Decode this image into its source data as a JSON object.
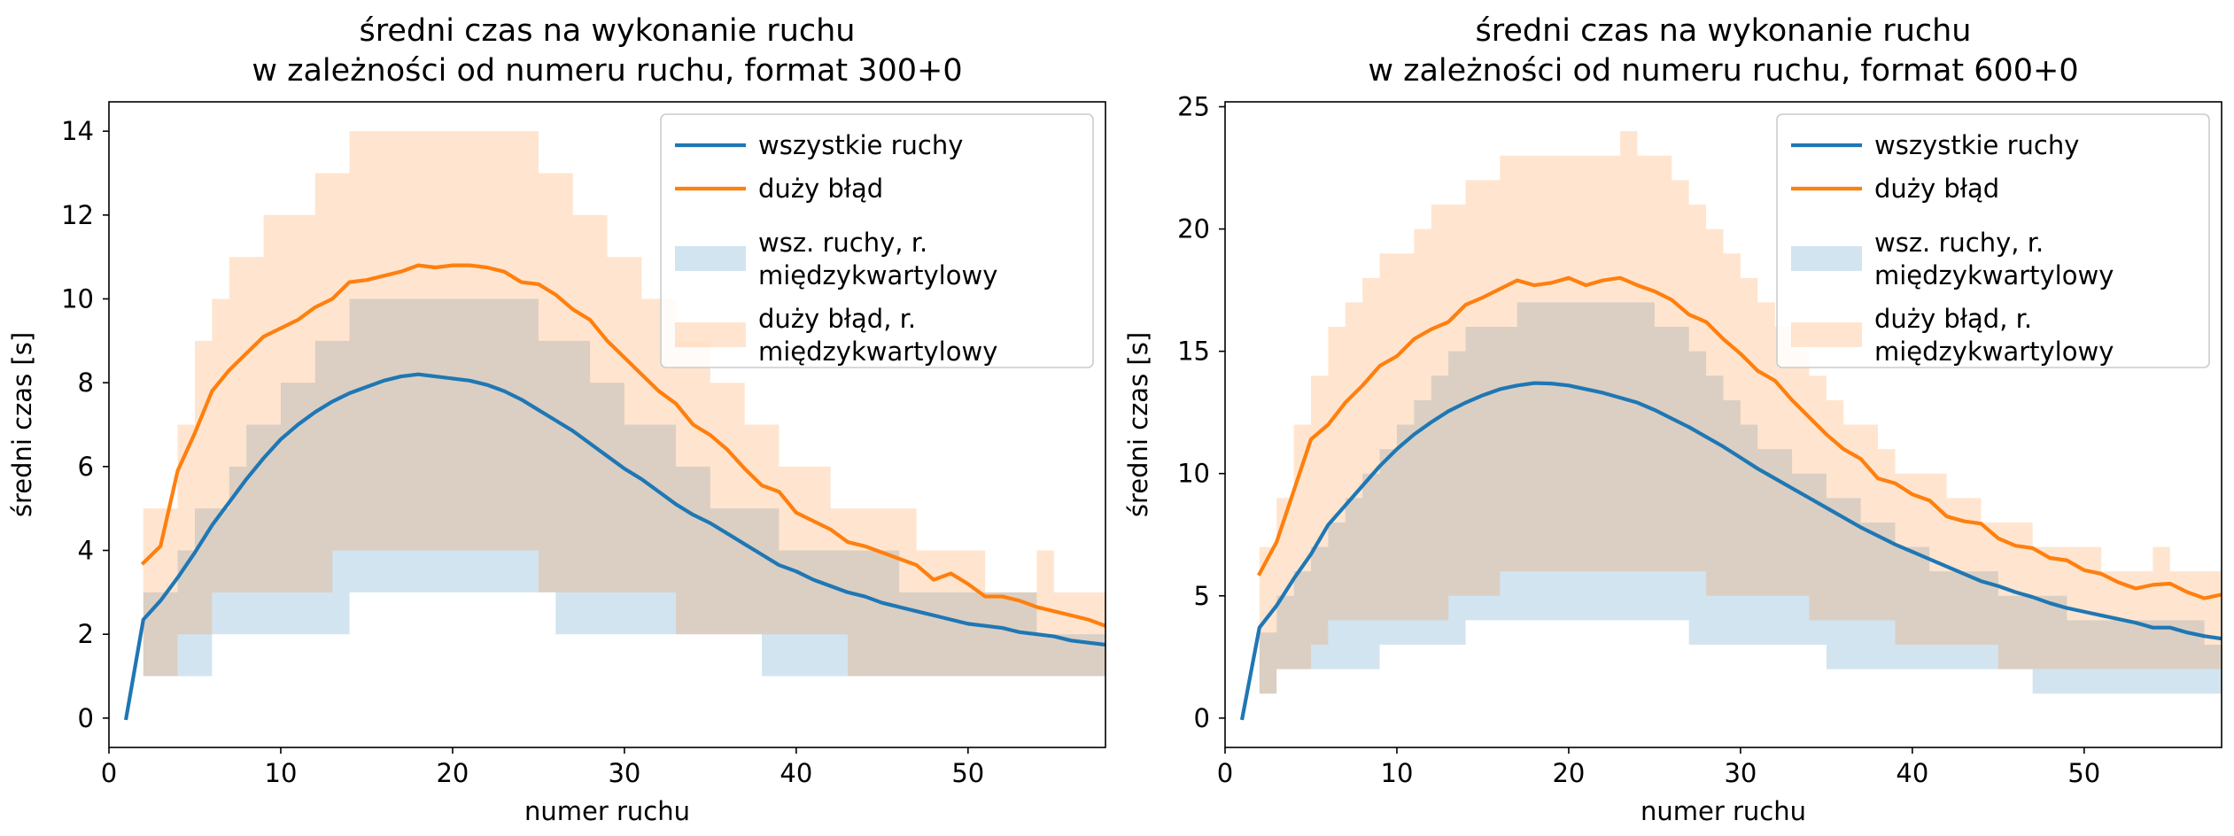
{
  "chart_data": [
    {
      "type": "line",
      "title": [
        "średni czas na wykonanie ruchu",
        "w zależności od numeru ruchu, format 300+0"
      ],
      "xlabel": "numer ruchu",
      "ylabel": "średni czas [s]",
      "xlim": [
        0,
        58
      ],
      "ylim": [
        -0.7,
        14.7
      ],
      "xticks": [
        0,
        10,
        20,
        30,
        40,
        50
      ],
      "yticks": [
        0,
        2,
        4,
        6,
        8,
        10,
        12,
        14
      ],
      "legend": {
        "position": "top-right",
        "entries": [
          {
            "label": "wszystkie ruchy",
            "kind": "line",
            "color": "#1f77b4"
          },
          {
            "label": "duży błąd",
            "kind": "line",
            "color": "#ff7f0e"
          },
          {
            "label": "wsz. ruchy, r. międzykwartylowy",
            "lines": [
              "wsz. ruchy, r.",
              "międzykwartylowy"
            ],
            "kind": "patch",
            "color": "#1f77b4"
          },
          {
            "label": "duży błąd, r. międzykwartylowy",
            "lines": [
              "duży błąd, r.",
              "międzykwartylowy"
            ],
            "kind": "patch",
            "color": "#ff7f0e"
          }
        ]
      },
      "series": [
        {
          "name": "wszystkie ruchy",
          "color": "#1f77b4",
          "x_start": 1,
          "values": [
            0,
            2.35,
            2.8,
            3.35,
            3.95,
            4.6,
            5.15,
            5.7,
            6.2,
            6.65,
            7.0,
            7.3,
            7.55,
            7.75,
            7.9,
            8.05,
            8.15,
            8.2,
            8.15,
            8.1,
            8.05,
            7.95,
            7.8,
            7.6,
            7.35,
            7.1,
            6.85,
            6.55,
            6.25,
            5.95,
            5.7,
            5.4,
            5.1,
            4.85,
            4.65,
            4.4,
            4.15,
            3.9,
            3.65,
            3.5,
            3.3,
            3.15,
            3.0,
            2.9,
            2.75,
            2.65,
            2.55,
            2.45,
            2.35,
            2.25,
            2.2,
            2.15,
            2.05,
            2.0,
            1.95,
            1.85,
            1.8,
            1.75
          ]
        },
        {
          "name": "duży błąd",
          "color": "#ff7f0e",
          "x_start": 2,
          "values": [
            3.7,
            4.1,
            5.9,
            6.8,
            7.8,
            8.3,
            8.7,
            9.1,
            9.3,
            9.5,
            9.8,
            10.0,
            10.4,
            10.45,
            10.55,
            10.65,
            10.8,
            10.75,
            10.8,
            10.8,
            10.75,
            10.65,
            10.4,
            10.35,
            10.1,
            9.75,
            9.5,
            9.0,
            8.6,
            8.2,
            7.8,
            7.5,
            7.0,
            6.75,
            6.4,
            5.95,
            5.55,
            5.4,
            4.9,
            4.7,
            4.5,
            4.2,
            4.1,
            3.95,
            3.8,
            3.65,
            3.3,
            3.45,
            3.2,
            2.9,
            2.9,
            2.8,
            2.65,
            2.55,
            2.45,
            2.35,
            2.2
          ]
        }
      ],
      "bands": [
        {
          "name": "wsz. ruchy, r. międzykwartylowy",
          "color": "#1f77b4",
          "x_start": 2,
          "low": [
            1,
            1,
            1,
            1,
            2,
            2,
            2,
            2,
            2,
            2,
            2,
            2,
            3,
            3,
            3,
            3,
            3,
            3,
            3,
            3,
            3,
            3,
            3,
            3,
            2,
            2,
            2,
            2,
            2,
            2,
            2,
            2,
            2,
            2,
            2,
            2,
            1,
            1,
            1,
            1,
            1,
            1,
            1,
            1,
            1,
            1,
            1,
            1,
            1,
            1,
            1,
            1,
            1,
            1,
            1,
            1,
            1
          ],
          "high": [
            3,
            3,
            4,
            5,
            5,
            6,
            7,
            7,
            8,
            8,
            9,
            9,
            10,
            10,
            10,
            10,
            10,
            10,
            10,
            10,
            10,
            10,
            10,
            9,
            9,
            9,
            8,
            8,
            7,
            7,
            7,
            6,
            6,
            5,
            5,
            5,
            5,
            4,
            4,
            4,
            4,
            4,
            4,
            4,
            3,
            3,
            3,
            3,
            3,
            3,
            3,
            3,
            2,
            2,
            2,
            2,
            2
          ]
        },
        {
          "name": "duży błąd, r. międzykwartylowy",
          "color": "#ff7f0e",
          "x_start": 2,
          "low": [
            1,
            1,
            2,
            2,
            3,
            3,
            3,
            3,
            3,
            3,
            3,
            4,
            4,
            4,
            4,
            4,
            4,
            4,
            4,
            4,
            4,
            4,
            4,
            3,
            3,
            3,
            3,
            3,
            3,
            3,
            3,
            2,
            2,
            2,
            2,
            2,
            2,
            2,
            2,
            2,
            2,
            1,
            1,
            1,
            1,
            1,
            1,
            1,
            1,
            1,
            1,
            1,
            1,
            1,
            1,
            1,
            1
          ],
          "high": [
            5,
            5,
            7,
            9,
            10,
            11,
            11,
            12,
            12,
            12,
            13,
            13,
            14,
            14,
            14,
            14,
            14,
            14,
            14,
            14,
            14,
            14,
            14,
            13,
            13,
            12,
            12,
            11,
            11,
            10,
            10,
            9,
            9,
            8,
            8,
            7,
            7,
            6,
            6,
            6,
            5,
            5,
            5,
            5,
            5,
            4,
            4,
            4,
            4,
            3,
            3,
            3,
            4,
            3,
            3,
            3,
            3
          ]
        }
      ]
    },
    {
      "type": "line",
      "title": [
        "średni czas na wykonanie ruchu",
        "w zależności od numeru ruchu, format 600+0"
      ],
      "xlabel": "numer ruchu",
      "ylabel": "średni czas [s]",
      "xlim": [
        0,
        58
      ],
      "ylim": [
        -1.2,
        25.2
      ],
      "xticks": [
        0,
        10,
        20,
        30,
        40,
        50
      ],
      "yticks": [
        0,
        5,
        10,
        15,
        20,
        25
      ],
      "legend": {
        "position": "top-right",
        "entries": [
          {
            "label": "wszystkie ruchy",
            "kind": "line",
            "color": "#1f77b4"
          },
          {
            "label": "duży błąd",
            "kind": "line",
            "color": "#ff7f0e"
          },
          {
            "label": "wsz. ruchy, r. międzykwartylowy",
            "lines": [
              "wsz. ruchy, r.",
              "międzykwartylowy"
            ],
            "kind": "patch",
            "color": "#1f77b4"
          },
          {
            "label": "duży błąd, r. międzykwartylowy",
            "lines": [
              "duży błąd, r.",
              "międzykwartylowy"
            ],
            "kind": "patch",
            "color": "#ff7f0e"
          }
        ]
      },
      "series": [
        {
          "name": "wszystkie ruchy",
          "color": "#1f77b4",
          "x_start": 1,
          "values": [
            0,
            3.7,
            4.6,
            5.7,
            6.7,
            7.9,
            8.7,
            9.5,
            10.3,
            11.0,
            11.6,
            12.1,
            12.55,
            12.9,
            13.2,
            13.45,
            13.6,
            13.7,
            13.68,
            13.6,
            13.45,
            13.3,
            13.1,
            12.9,
            12.6,
            12.25,
            11.9,
            11.5,
            11.1,
            10.65,
            10.2,
            9.8,
            9.4,
            9.0,
            8.6,
            8.2,
            7.8,
            7.45,
            7.1,
            6.8,
            6.5,
            6.2,
            5.9,
            5.6,
            5.4,
            5.15,
            4.95,
            4.7,
            4.5,
            4.35,
            4.2,
            4.05,
            3.9,
            3.7,
            3.7,
            3.5,
            3.35,
            3.25
          ]
        },
        {
          "name": "duży błąd",
          "color": "#ff7f0e",
          "x_start": 2,
          "values": [
            5.9,
            7.2,
            9.3,
            11.4,
            12.0,
            12.9,
            13.6,
            14.4,
            14.8,
            15.5,
            15.9,
            16.2,
            16.9,
            17.2,
            17.55,
            17.9,
            17.7,
            17.8,
            18.0,
            17.7,
            17.9,
            18.0,
            17.7,
            17.45,
            17.1,
            16.5,
            16.2,
            15.5,
            14.9,
            14.2,
            13.8,
            13.0,
            12.3,
            11.6,
            11.0,
            10.6,
            9.8,
            9.6,
            9.15,
            8.9,
            8.25,
            8.05,
            7.95,
            7.35,
            7.05,
            6.95,
            6.55,
            6.45,
            6.05,
            5.9,
            5.55,
            5.3,
            5.45,
            5.5,
            5.15,
            4.9,
            5.05,
            5.15
          ]
        }
      ],
      "bands": [
        {
          "name": "wsz. ruchy, r. międzykwartylowy",
          "color": "#1f77b4",
          "x_start": 1,
          "low": [
            0,
            1,
            2,
            2,
            2,
            2,
            2,
            2,
            3,
            3,
            3,
            3,
            3,
            4,
            4,
            4,
            4,
            4,
            4,
            4,
            4,
            4,
            4,
            4,
            4,
            4,
            3,
            3,
            3,
            3,
            3,
            3,
            3,
            3,
            2,
            2,
            2,
            2,
            2,
            2,
            2,
            2,
            2,
            2,
            2,
            2,
            1,
            1,
            1,
            1,
            1,
            1,
            1,
            1,
            1,
            1,
            1,
            1
          ],
          "high": [
            0,
            3.5,
            5,
            6,
            7,
            8,
            9,
            10,
            11,
            12,
            13,
            14,
            15,
            16,
            16,
            16,
            17,
            17,
            17,
            17,
            17,
            17,
            17,
            17,
            16,
            16,
            15,
            14,
            13,
            12,
            11,
            11,
            10,
            10,
            9,
            9,
            8,
            8,
            7,
            7,
            6,
            6,
            6,
            6,
            5,
            5,
            5,
            5,
            4,
            4,
            4,
            4,
            4,
            4,
            4,
            4,
            3,
            3
          ]
        },
        {
          "name": "duży błąd, r. międzykwartylowy",
          "color": "#ff7f0e",
          "x_start": 2,
          "low": [
            1,
            2,
            2,
            3,
            4,
            4,
            4,
            4,
            4,
            4,
            4,
            5,
            5,
            5,
            6,
            6,
            6,
            6,
            6,
            6,
            6,
            6,
            6,
            6,
            6,
            6,
            5,
            5,
            5,
            5,
            5,
            5,
            4,
            4,
            4,
            4,
            4,
            3,
            3,
            3,
            3,
            3,
            3,
            2,
            2,
            2,
            2,
            2,
            2,
            2,
            2,
            2,
            2,
            2,
            2,
            2,
            2
          ],
          "high": [
            7,
            9,
            12,
            14,
            16,
            17,
            18,
            19,
            19,
            20,
            21,
            21,
            22,
            22,
            23,
            23,
            23,
            23,
            23,
            23,
            23,
            24,
            23,
            23,
            22,
            21,
            20,
            19,
            18,
            17,
            16,
            15,
            14,
            13,
            12,
            12,
            11,
            10,
            10,
            10,
            9,
            9,
            8,
            8,
            8,
            7,
            7,
            7,
            7,
            6,
            6,
            6,
            7,
            6,
            6,
            6,
            6
          ]
        }
      ]
    }
  ]
}
